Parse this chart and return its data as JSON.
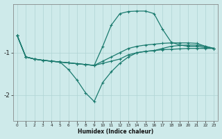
{
  "xlabel": "Humidex (Indice chaleur)",
  "bg_color": "#ceeaea",
  "line_color": "#1a7a6e",
  "grid_color": "#afd4d4",
  "xlim": [
    -0.5,
    23.5
  ],
  "ylim": [
    -2.6,
    0.15
  ],
  "yticks": [
    -2,
    -1
  ],
  "xticks": [
    0,
    1,
    2,
    3,
    4,
    5,
    6,
    7,
    8,
    9,
    10,
    11,
    12,
    13,
    14,
    15,
    16,
    17,
    18,
    19,
    20,
    21,
    22,
    23
  ],
  "line_flat_x": [
    0,
    1,
    2,
    3,
    4,
    5,
    6,
    7,
    8,
    9,
    10,
    11,
    12,
    13,
    14,
    15,
    16,
    17,
    18,
    19,
    20,
    21,
    22,
    23
  ],
  "line_flat_y": [
    -0.6,
    -1.1,
    -1.15,
    -1.18,
    -1.2,
    -1.22,
    -1.24,
    -1.26,
    -1.28,
    -1.3,
    -1.25,
    -1.2,
    -1.15,
    -1.05,
    -1.0,
    -0.97,
    -0.95,
    -0.93,
    -0.92,
    -0.91,
    -0.9,
    -0.9,
    -0.9,
    -0.9
  ],
  "line_flat2_x": [
    0,
    1,
    2,
    3,
    4,
    5,
    6,
    7,
    8,
    9,
    10,
    11,
    12,
    13,
    14,
    15,
    16,
    17,
    18,
    19,
    20,
    21,
    22,
    23
  ],
  "line_flat2_y": [
    -0.6,
    -1.1,
    -1.15,
    -1.18,
    -1.2,
    -1.22,
    -1.24,
    -1.26,
    -1.28,
    -1.3,
    -1.2,
    -1.1,
    -1.0,
    -0.9,
    -0.85,
    -0.82,
    -0.8,
    -0.78,
    -0.77,
    -0.77,
    -0.77,
    -0.78,
    -0.85,
    -0.9
  ],
  "line_peak_x": [
    0,
    1,
    2,
    3,
    4,
    5,
    6,
    7,
    8,
    9,
    10,
    11,
    12,
    13,
    14,
    15,
    16,
    17,
    18,
    19,
    20,
    21,
    22,
    23
  ],
  "line_peak_y": [
    -0.6,
    -1.1,
    -1.15,
    -1.18,
    -1.2,
    -1.22,
    -1.24,
    -1.26,
    -1.28,
    -1.3,
    -0.85,
    -0.35,
    -0.08,
    -0.03,
    -0.02,
    -0.02,
    -0.08,
    -0.45,
    -0.75,
    -0.82,
    -0.85,
    -0.85,
    -0.88,
    -0.9
  ],
  "line_dip_x": [
    0,
    1,
    2,
    3,
    4,
    5,
    6,
    7,
    8,
    9,
    10,
    11,
    12,
    13,
    14,
    15,
    16,
    17,
    18,
    19,
    20,
    21,
    22,
    23
  ],
  "line_dip_y": [
    -0.6,
    -1.1,
    -1.15,
    -1.18,
    -1.2,
    -1.22,
    -1.4,
    -1.65,
    -1.95,
    -2.15,
    -1.7,
    -1.45,
    -1.25,
    -1.1,
    -1.0,
    -0.97,
    -0.95,
    -0.9,
    -0.85,
    -0.83,
    -0.82,
    -0.82,
    -0.85,
    -0.9
  ]
}
